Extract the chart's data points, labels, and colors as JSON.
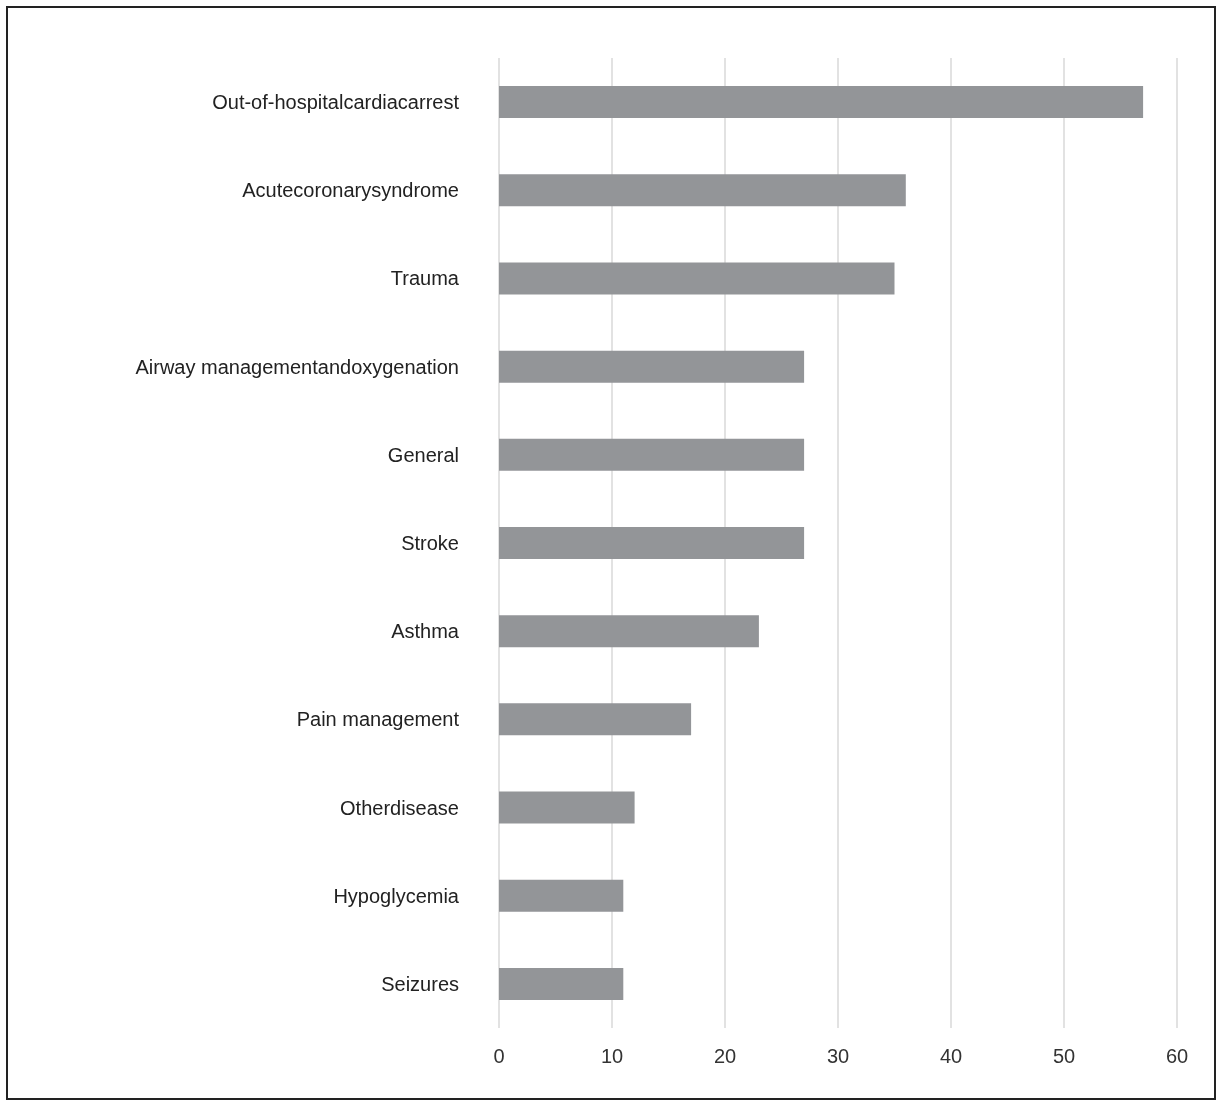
{
  "chart_data": {
    "type": "bar",
    "orientation": "horizontal",
    "categories": [
      "Out-of-hospitalcardiacarrest",
      "Acutecoronarysyndrome",
      "Trauma",
      "Airway managementandoxygenation",
      "General",
      "Stroke",
      "Asthma",
      "Pain management",
      "Otherdisease",
      "Hypoglycemia",
      "Seizures"
    ],
    "values": [
      57,
      36,
      35,
      27,
      27,
      27,
      23,
      17,
      12,
      11,
      11
    ],
    "color": "#939598",
    "xlim": [
      0,
      60
    ],
    "xticks": [
      0,
      10,
      20,
      30,
      40,
      50,
      60
    ],
    "grid": "x"
  }
}
